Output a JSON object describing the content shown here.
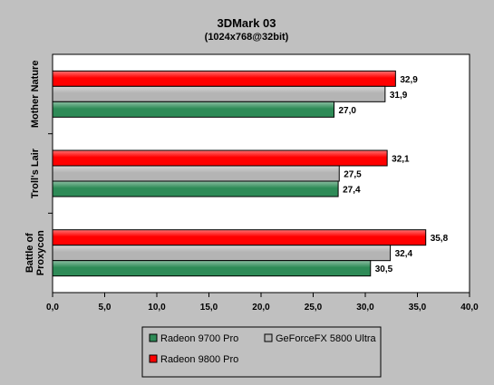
{
  "chart_data": {
    "type": "bar",
    "orientation": "horizontal",
    "title": "3DMark 03",
    "subtitle": "(1024x768@32bit)",
    "categories": [
      "Mother Nature",
      "Troll's Lair",
      "Battle of Proxycon"
    ],
    "category_lines": [
      [
        "Mother Nature"
      ],
      [
        "Troll's Lair"
      ],
      [
        "Battle of",
        "Proxycon"
      ]
    ],
    "series": [
      {
        "name": "Radeon 9800 Pro",
        "color": "#ff0000",
        "values": [
          32.9,
          32.1,
          35.8
        ],
        "labels": [
          "32,9",
          "32,1",
          "35,8"
        ]
      },
      {
        "name": "GeForceFX 5800 Ultra",
        "color": "#b4b4b4",
        "values": [
          31.9,
          27.5,
          32.4
        ],
        "labels": [
          "31,9",
          "27,5",
          "32,4"
        ]
      },
      {
        "name": "Radeon 9700 Pro",
        "color": "#2e8b57",
        "values": [
          27.0,
          27.4,
          30.5
        ],
        "labels": [
          "27,0",
          "27,4",
          "30,5"
        ]
      }
    ],
    "xlim": [
      0,
      40
    ],
    "x_ticks": [
      0,
      5,
      10,
      15,
      20,
      25,
      30,
      35,
      40
    ],
    "x_tick_labels": [
      "0,0",
      "5,0",
      "10,0",
      "15,0",
      "20,0",
      "25,0",
      "30,0",
      "35,0",
      "40,0"
    ],
    "grid": false,
    "plot_background": "#ffffff",
    "legend_position": "bottom",
    "legend_order": [
      "Radeon 9700 Pro",
      "GeForceFX 5800 Ultra",
      "Radeon 9800 Pro"
    ]
  }
}
